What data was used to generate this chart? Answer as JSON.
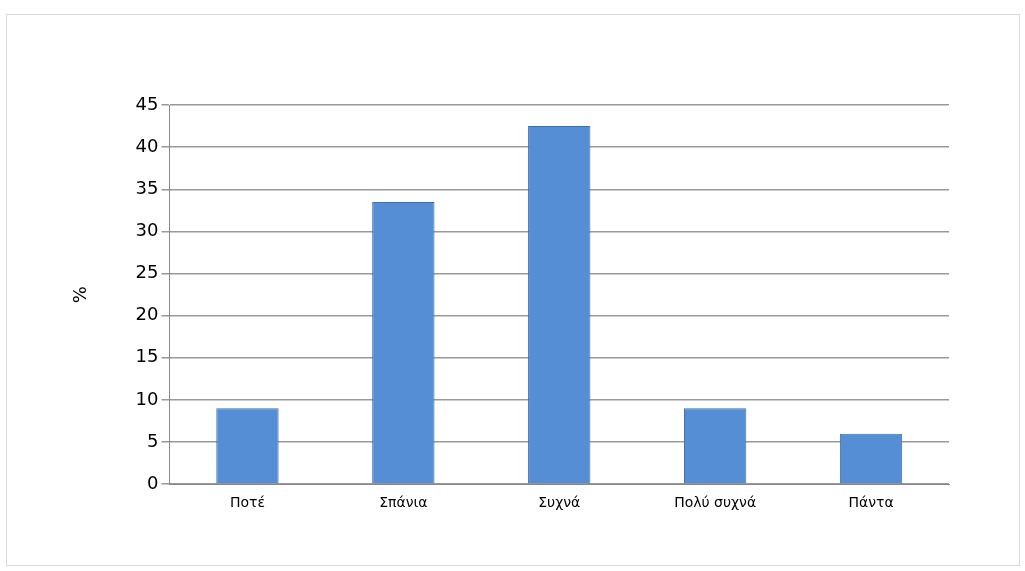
{
  "chart_data": {
    "type": "bar",
    "ylabel": "%",
    "categories": [
      "Ποτέ",
      "Σπάνια",
      "Συχνά",
      "Πολύ συχνά",
      "Πάντα"
    ],
    "values": [
      9,
      33.5,
      42.5,
      9,
      6
    ],
    "color": "#558ed5",
    "ylim": [
      0,
      45
    ],
    "yticks": [
      0,
      5,
      10,
      15,
      20,
      25,
      30,
      35,
      40,
      45
    ],
    "grid": "y",
    "legend": false
  }
}
